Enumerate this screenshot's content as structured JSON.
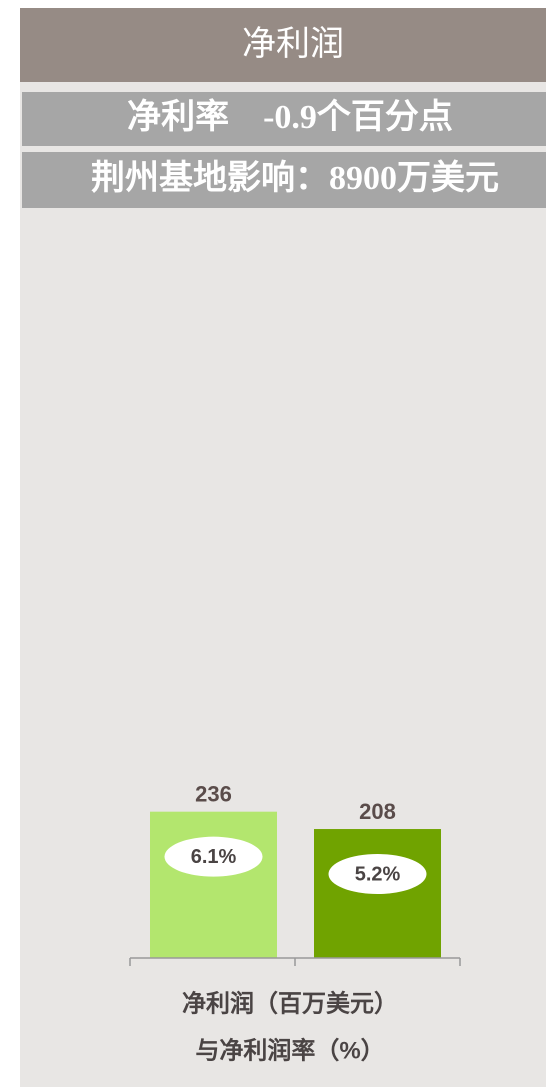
{
  "chart_data": {
    "type": "bar",
    "title": "净利润",
    "subtitles": [
      "净利率　-0.9个百分点",
      "荆州基地影响：8900万美元"
    ],
    "categories": [
      null,
      null
    ],
    "values": [
      236,
      208
    ],
    "colors": [
      "#b3e66e",
      "#70a300"
    ],
    "rates": {
      "values": [
        6.1,
        5.2
      ],
      "value_labels": [
        "6.1%",
        "5.2%"
      ]
    },
    "ylim": [
      0,
      300
    ],
    "x_label": [
      "净利润（百万美元）",
      "与净利润率（%）"
    ]
  }
}
